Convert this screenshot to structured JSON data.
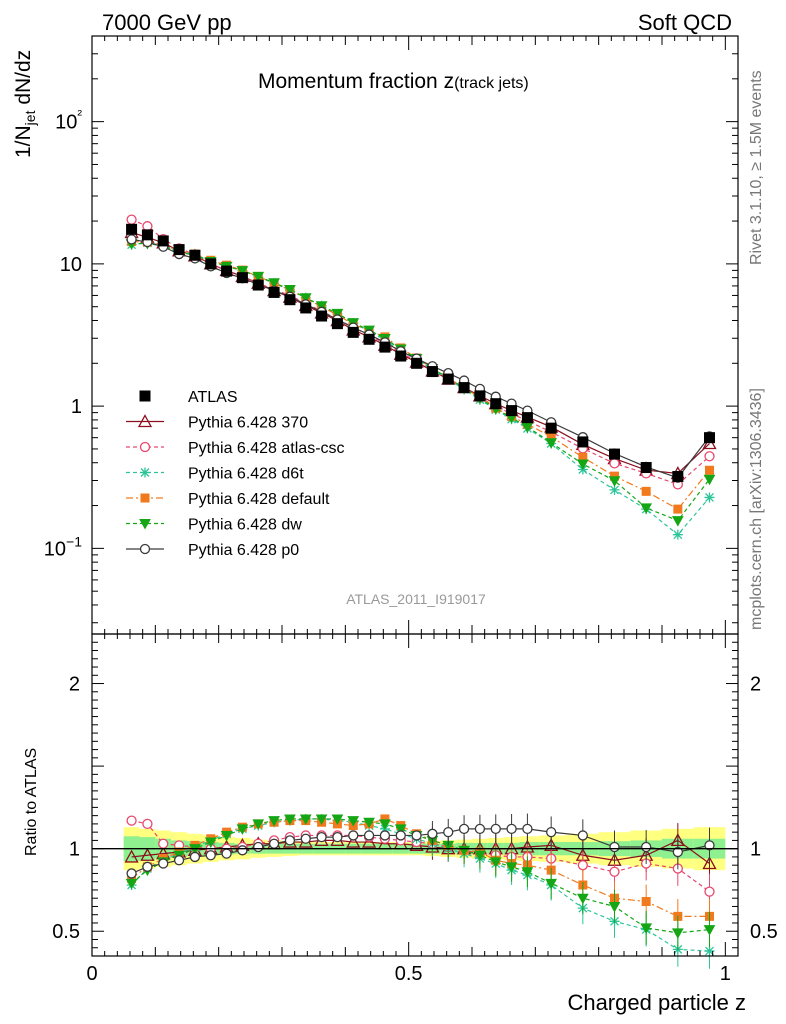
{
  "header": {
    "left": "7000 GeV pp",
    "right": "Soft QCD"
  },
  "side_labels": {
    "top": "Rivet 3.1.10, ≥ 1.5M events",
    "bottom": "mcplots.cern.ch [arXiv:1306.3436]"
  },
  "chart_data": {
    "type": "line",
    "title_main": "Momentum fraction z",
    "title_sub": "(track jets)",
    "watermark": "ATLAS_2011_I919017",
    "xlabel": "Charged particle z",
    "ylabel_main": "1/N",
    "ylabel_sub": "jet",
    "ylabel_rest": " dN/dz",
    "ratio_ylabel": "Ratio to ATLAS",
    "xlim": [
      0,
      1.02
    ],
    "ylim": [
      0.025,
      400
    ],
    "yscale": "log",
    "ratio_ylim": [
      0.35,
      2.3
    ],
    "x_ticks": [
      "0",
      "0.5",
      "1"
    ],
    "y_ticks": [
      "10−1",
      "1",
      "10",
      "10²"
    ],
    "ratio_ticks": [
      "0.5",
      "1",
      "2"
    ],
    "x": [
      0.0625,
      0.0875,
      0.1125,
      0.1375,
      0.1625,
      0.1875,
      0.2125,
      0.2375,
      0.2625,
      0.2875,
      0.3125,
      0.3375,
      0.3625,
      0.3875,
      0.4125,
      0.4375,
      0.4625,
      0.4875,
      0.5125,
      0.5375,
      0.5625,
      0.5875,
      0.6125,
      0.6375,
      0.6625,
      0.6875,
      0.725,
      0.775,
      0.825,
      0.875,
      0.925,
      0.975
    ],
    "data": {
      "name": "ATLAS",
      "values": [
        17.5,
        16.0,
        14.5,
        12.6,
        11.5,
        10.0,
        8.9,
        8.0,
        7.1,
        6.3,
        5.6,
        4.9,
        4.3,
        3.8,
        3.3,
        2.95,
        2.6,
        2.25,
        2.0,
        1.75,
        1.55,
        1.35,
        1.18,
        1.04,
        0.93,
        0.83,
        0.7,
        0.56,
        0.46,
        0.37,
        0.32,
        0.6
      ],
      "band_inner": [
        0.075,
        0.07,
        0.06,
        0.05,
        0.045,
        0.04,
        0.035,
        0.03,
        0.03,
        0.03,
        0.03,
        0.03,
        0.03,
        0.03,
        0.03,
        0.03,
        0.03,
        0.03,
        0.03,
        0.03,
        0.03,
        0.035,
        0.035,
        0.035,
        0.035,
        0.04,
        0.04,
        0.04,
        0.045,
        0.05,
        0.06,
        0.06
      ],
      "band_outer": [
        0.13,
        0.12,
        0.11,
        0.1,
        0.09,
        0.08,
        0.07,
        0.065,
        0.055,
        0.05,
        0.045,
        0.04,
        0.04,
        0.04,
        0.04,
        0.04,
        0.04,
        0.04,
        0.04,
        0.045,
        0.05,
        0.055,
        0.06,
        0.065,
        0.07,
        0.075,
        0.08,
        0.09,
        0.1,
        0.11,
        0.12,
        0.13
      ]
    },
    "series": [
      {
        "name": "Pythia 6.428 370",
        "color": "#8b0f1e",
        "dash": "",
        "marker": "triangle-open",
        "ratio": [
          0.95,
          0.96,
          0.97,
          0.98,
          0.99,
          1.0,
          1.01,
          1.02,
          1.03,
          1.03,
          1.04,
          1.04,
          1.05,
          1.05,
          1.04,
          1.04,
          1.03,
          1.03,
          1.02,
          1.01,
          1.0,
          1.0,
          1.0,
          1.0,
          1.0,
          1.01,
          1.02,
          0.96,
          0.93,
          0.96,
          1.05,
          0.91
        ]
      },
      {
        "name": "Pythia 6.428 atlas-csc",
        "color": "#e8476e",
        "dash": "4,3",
        "marker": "circle-open",
        "ratio": [
          1.17,
          1.15,
          1.03,
          1.02,
          1.01,
          1.0,
          1.0,
          1.01,
          1.03,
          1.05,
          1.07,
          1.08,
          1.08,
          1.08,
          1.08,
          1.07,
          1.06,
          1.05,
          1.04,
          1.03,
          1.01,
          0.99,
          0.97,
          0.96,
          0.95,
          0.95,
          0.94,
          0.9,
          0.86,
          0.91,
          0.88,
          0.74
        ]
      },
      {
        "name": "Pythia 6.428 d6t",
        "color": "#2ec49a",
        "dash": "4,3",
        "marker": "star",
        "ratio": [
          0.78,
          0.88,
          0.93,
          0.97,
          1.01,
          1.05,
          1.09,
          1.12,
          1.14,
          1.16,
          1.17,
          1.18,
          1.18,
          1.17,
          1.16,
          1.14,
          1.12,
          1.09,
          1.06,
          1.03,
          1.0,
          0.97,
          0.94,
          0.91,
          0.87,
          0.84,
          0.78,
          0.64,
          0.56,
          0.51,
          0.39,
          0.38
        ]
      },
      {
        "name": "Pythia 6.428 default",
        "color": "#f27a1e",
        "dash": "7,3,2,3",
        "marker": "square",
        "ratio": [
          0.82,
          0.89,
          0.94,
          0.98,
          1.02,
          1.06,
          1.1,
          1.13,
          1.15,
          1.16,
          1.17,
          1.17,
          1.16,
          1.15,
          1.14,
          1.15,
          1.18,
          1.14,
          1.09,
          1.05,
          1.02,
          0.99,
          0.98,
          0.93,
          0.91,
          0.9,
          0.87,
          0.78,
          0.7,
          0.68,
          0.59,
          0.59
        ]
      },
      {
        "name": "Pythia 6.428 dw",
        "color": "#14a614",
        "dash": "4,3",
        "marker": "triangle-down",
        "ratio": [
          0.79,
          0.87,
          0.92,
          0.96,
          1.0,
          1.04,
          1.08,
          1.12,
          1.15,
          1.17,
          1.18,
          1.18,
          1.18,
          1.18,
          1.17,
          1.16,
          1.15,
          1.12,
          1.08,
          1.05,
          1.02,
          0.99,
          0.96,
          0.92,
          0.89,
          0.86,
          0.79,
          0.7,
          0.65,
          0.52,
          0.49,
          0.51
        ]
      },
      {
        "name": "Pythia 6.428 p0",
        "color": "#3a3a3a",
        "dash": "",
        "marker": "circle-open",
        "ratio": [
          0.85,
          0.89,
          0.91,
          0.93,
          0.95,
          0.96,
          0.97,
          0.99,
          1.01,
          1.03,
          1.05,
          1.06,
          1.07,
          1.07,
          1.08,
          1.08,
          1.08,
          1.08,
          1.08,
          1.09,
          1.1,
          1.12,
          1.12,
          1.12,
          1.12,
          1.12,
          1.1,
          1.08,
          1.01,
          1.01,
          0.98,
          1.02
        ]
      }
    ]
  }
}
